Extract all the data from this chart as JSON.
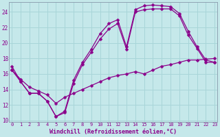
{
  "xlabel": "Windchill (Refroidissement éolien,°C)",
  "bg_color": "#c5e8ea",
  "line_color": "#8b008b",
  "grid_color": "#a8d5d8",
  "xlim_min": -0.3,
  "xlim_max": 23.3,
  "ylim_min": 9.8,
  "ylim_max": 25.3,
  "xticks": [
    0,
    1,
    2,
    3,
    4,
    5,
    6,
    7,
    8,
    9,
    10,
    11,
    12,
    13,
    14,
    15,
    16,
    17,
    18,
    19,
    20,
    21,
    22,
    23
  ],
  "yticks": [
    10,
    12,
    14,
    16,
    18,
    20,
    22,
    24
  ],
  "curve1_x": [
    0,
    1,
    2,
    3,
    4,
    5,
    6,
    7,
    8,
    9,
    10,
    11,
    12,
    13,
    14,
    15,
    16,
    17,
    18,
    19,
    20,
    21,
    22,
    23
  ],
  "curve1_y": [
    17.0,
    15.0,
    13.5,
    13.5,
    12.5,
    10.5,
    11.2,
    15.2,
    17.5,
    19.2,
    21.2,
    22.5,
    23.0,
    19.5,
    24.3,
    24.8,
    24.9,
    24.8,
    24.7,
    23.8,
    21.5,
    19.5,
    17.8,
    17.5
  ],
  "curve2_x": [
    0,
    1,
    2,
    3,
    4,
    5,
    6,
    7,
    8,
    9,
    10,
    11,
    12,
    13,
    14,
    15,
    16,
    17,
    18,
    19,
    20,
    21,
    22,
    23
  ],
  "curve2_y": [
    16.5,
    15.0,
    13.5,
    13.5,
    12.5,
    10.5,
    11.0,
    14.8,
    17.2,
    18.8,
    20.5,
    21.8,
    22.5,
    19.2,
    24.0,
    24.3,
    24.4,
    24.4,
    24.4,
    23.5,
    21.0,
    19.3,
    17.5,
    17.5
  ],
  "curve3_x": [
    0,
    1,
    2,
    3,
    4,
    5,
    6,
    7,
    8,
    9,
    10,
    11,
    12,
    13,
    14,
    15,
    16,
    17,
    18,
    19,
    20,
    21,
    22,
    23
  ],
  "curve3_y": [
    16.5,
    15.3,
    14.3,
    13.8,
    13.3,
    12.2,
    13.0,
    13.5,
    14.0,
    14.5,
    15.0,
    15.5,
    15.8,
    16.0,
    16.3,
    16.0,
    16.5,
    17.0,
    17.2,
    17.5,
    17.8,
    17.8,
    17.9,
    18.0
  ]
}
